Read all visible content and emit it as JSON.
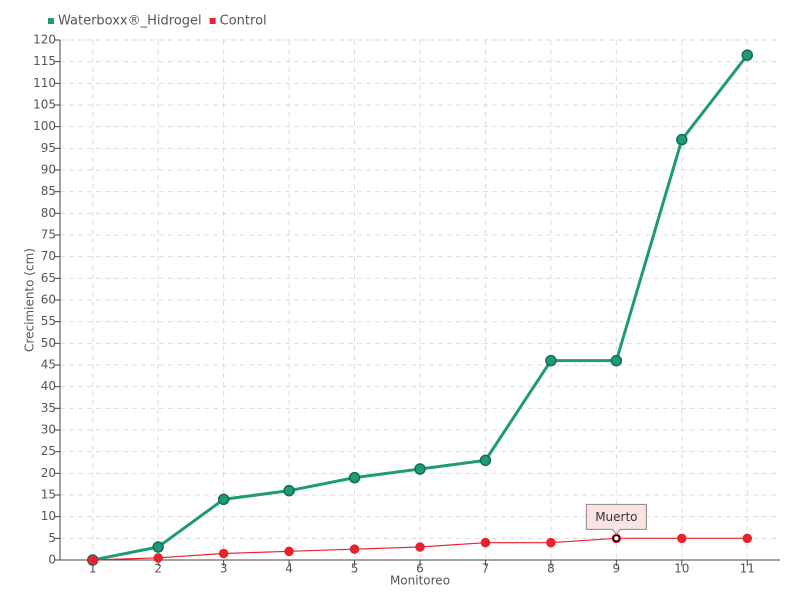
{
  "chart_data": {
    "type": "line",
    "categories": [
      "1",
      "2",
      "3",
      "4",
      "5",
      "6",
      "7",
      "8",
      "9",
      "10",
      "11"
    ],
    "series": [
      {
        "name": "Waterboxx®_Hidrogel",
        "color": "#1f9a78",
        "values": [
          0,
          3,
          14,
          16,
          19,
          21,
          23,
          46,
          46,
          97,
          116.5
        ]
      },
      {
        "name": "Control",
        "color": "#e8232d",
        "values": [
          0,
          0.5,
          1.5,
          2,
          2.5,
          3,
          4,
          4,
          5,
          5,
          5
        ]
      }
    ],
    "xlabel": "Monitoreo",
    "ylabel": "Crecimiento (cm)",
    "ylim": [
      0,
      120
    ],
    "yticks": [
      0,
      5,
      10,
      15,
      20,
      25,
      30,
      35,
      40,
      45,
      50,
      55,
      60,
      65,
      70,
      75,
      80,
      85,
      90,
      95,
      100,
      105,
      110,
      115,
      120
    ],
    "grid": true,
    "legend": "top-left",
    "annotation": {
      "text": "Muerto",
      "series": "Control",
      "category": "9"
    }
  }
}
